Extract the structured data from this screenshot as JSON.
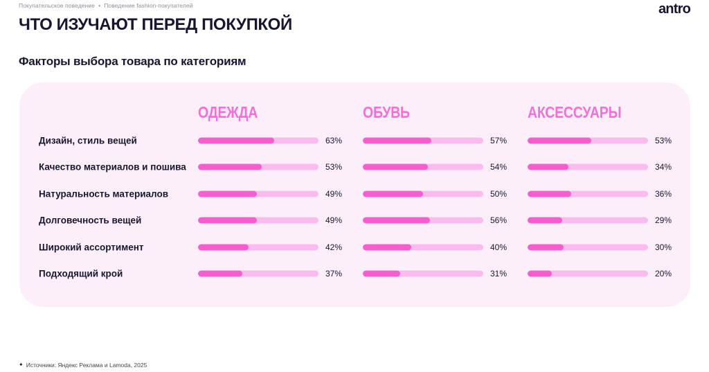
{
  "page": {
    "breadcrumb": {
      "items": [
        "Покупательское поведение",
        "Поведение fashion-покупателей"
      ],
      "separator": "•"
    },
    "logo": "antro",
    "title": "ЧТО ИЗУЧАЮТ ПЕРЕД ПОКУПКОЙ",
    "subtitle": "Факторы выбора товара по категориям",
    "footer": {
      "icon": "✦",
      "text": "Источники: Яндекс Реклама и Lamoda, 2025"
    }
  },
  "colors": {
    "ink": "#16162e",
    "muted_text": "#8e8e99",
    "panel_bg": "#fdeffa",
    "bar_fill": "#f65ecf",
    "bar_track": "#f9bcec",
    "category_header_pink": "#f36fd9"
  },
  "chart_data": {
    "type": "bar",
    "orientation": "horizontal",
    "title": "Факторы выбора товара по категориям",
    "unit": "%",
    "value_range": [
      0,
      100
    ],
    "grid": false,
    "legend_position": "column-headers-top",
    "categories": [
      "Дизайн, стиль вещей",
      "Качество материалов и пошива",
      "Натуральность материалов",
      "Долговечность вещей",
      "Широкий ассортимент",
      "Подходящий крой"
    ],
    "series": [
      {
        "name": "ОДЕЖДА",
        "values": [
          63,
          53,
          49,
          49,
          42,
          37
        ]
      },
      {
        "name": "ОБУВЬ",
        "values": [
          57,
          54,
          50,
          56,
          40,
          31
        ]
      },
      {
        "name": "АКСЕССУАРЫ",
        "values": [
          53,
          34,
          36,
          29,
          30,
          20
        ]
      }
    ]
  }
}
